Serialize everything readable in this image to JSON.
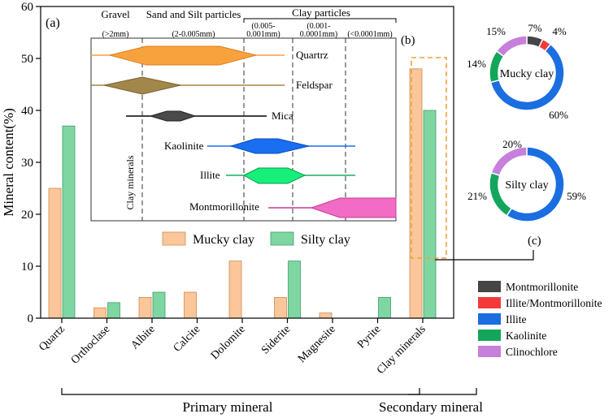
{
  "chart_data": [
    {
      "type": "bar",
      "panel_label": "(a)",
      "ylabel": "Mineral content(%)",
      "ylim": [
        0,
        60
      ],
      "yticks": [
        "0",
        "10",
        "20",
        "30",
        "40",
        "50",
        "60"
      ],
      "categories": [
        "Quartz",
        "Orthoclase",
        "Albite",
        "Calcite",
        "Dolomite",
        "Siderite",
        "Magnesite",
        "Pyrite",
        "Clay minerals"
      ],
      "series": [
        {
          "name": "Mucky clay",
          "color": "#fbc69a",
          "values": [
            25,
            2,
            4,
            5,
            11,
            4,
            1,
            0,
            48
          ]
        },
        {
          "name": "Silty clay",
          "color": "#7fd6a2",
          "values": [
            37,
            3,
            5,
            0,
            0,
            11,
            0,
            4,
            40
          ]
        }
      ],
      "groups": [
        {
          "label": "Primary mineral",
          "from": 0,
          "to": 7
        },
        {
          "label": "Secondary mineral",
          "from": 8,
          "to": 8
        }
      ]
    },
    {
      "type": "range",
      "panel_label": "(b)",
      "headers": [
        {
          "label": "Gravel",
          "sub": "(>2mm)"
        },
        {
          "label": "Sand and Silt particles",
          "sub": "(2-0.005mm)"
        },
        {
          "label": "Clay particles",
          "sub": ""
        }
      ],
      "clay_subheaders": [
        [
          "(0.005-",
          "0.001mm)"
        ],
        [
          "(0.001-",
          "0.0001mm)"
        ],
        [
          "(<0.0001mm)"
        ]
      ],
      "side_label": "Clay minerals",
      "rows": [
        {
          "name": "Quartrz",
          "color": "#f8a23e"
        },
        {
          "name": "Feldspar",
          "color": "#a2874a"
        },
        {
          "name": "Mica",
          "color": "#4a4a4a"
        },
        {
          "name": "Kaolinite",
          "color": "#1a6ef0"
        },
        {
          "name": "Illite",
          "color": "#16f07a"
        },
        {
          "name": "Montmorillonite",
          "color": "#f26bc4"
        }
      ]
    },
    {
      "type": "pie",
      "panel_label": "(c)",
      "donuts": [
        {
          "label": "Mucky clay",
          "slices": [
            {
              "name": "Montmorillonite",
              "value": 7,
              "label": "7%"
            },
            {
              "name": "Illite/Montmorillonite",
              "value": 4,
              "label": "4%"
            },
            {
              "name": "Illite",
              "value": 60,
              "label": "60%"
            },
            {
              "name": "Kaolinite",
              "value": 14,
              "label": "14%"
            },
            {
              "name": "Clinochlore",
              "value": 15,
              "label": "15%"
            }
          ]
        },
        {
          "label": "Silty clay",
          "slices": [
            {
              "name": "Illite",
              "value": 59,
              "label": "59%"
            },
            {
              "name": "Kaolinite",
              "value": 21,
              "label": "21%"
            },
            {
              "name": "Clinochlore",
              "value": 20,
              "label": "20%"
            }
          ]
        }
      ],
      "legend": [
        {
          "name": "Montmorillonite",
          "color": "#454545"
        },
        {
          "name": "Illite/Montmorillonite",
          "color": "#f23a3a"
        },
        {
          "name": "Illite",
          "color": "#1a6ee0"
        },
        {
          "name": "Kaolinite",
          "color": "#13a65a"
        },
        {
          "name": "Clinochlore",
          "color": "#c77fdc"
        }
      ]
    }
  ]
}
